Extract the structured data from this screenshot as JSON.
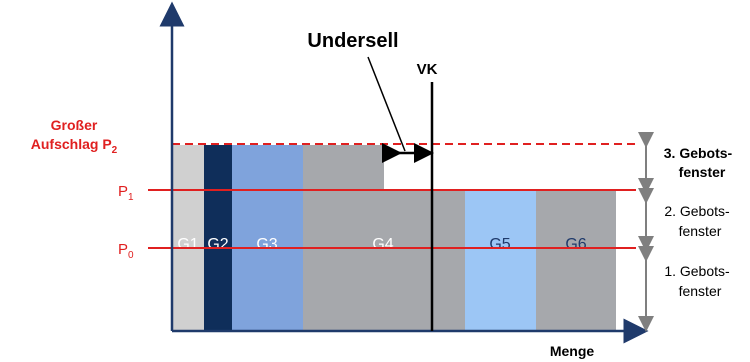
{
  "labels": {
    "undersell": "Undersell",
    "vk": "VK",
    "menge": "Menge",
    "big_markup_line1": "Großer",
    "big_markup_line2": "Aufschlag P",
    "big_markup_sub": "2",
    "p1": "P",
    "p1_sub": "1",
    "p0": "P",
    "p0_sub": "0"
  },
  "windows": {
    "w3_line1": "3. Gebots-",
    "w3_line2": "fenster",
    "w2_line1": "2. Gebots-",
    "w2_line2": "fenster",
    "w1_line1": "1. Gebots-",
    "w1_line2": "fenster"
  },
  "groups": [
    {
      "label": "G1",
      "color": "#d0d0d0"
    },
    {
      "label": "G2",
      "color": "#0f2e5a"
    },
    {
      "label": "G3",
      "color": "#7fa3dc"
    },
    {
      "label": "G4",
      "color": "#a6a8ac"
    },
    {
      "label": "G5",
      "color": "#9cc6f5"
    },
    {
      "label": "G6",
      "color": "#a6a8ac"
    }
  ],
  "colors": {
    "price_line": "#e02020",
    "axis": "#1f3a6b",
    "text_dark": "#000000",
    "group_label": "#ffffff",
    "bracket": "#7f7f7f"
  }
}
